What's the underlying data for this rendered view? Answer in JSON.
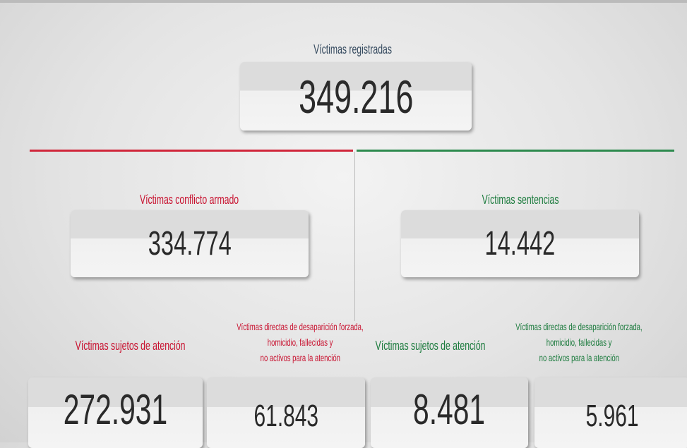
{
  "total": {
    "label": "Víctimas registradas",
    "value": "349.216"
  },
  "sections": [
    {
      "label": "Víctimas conflicto armado",
      "value": "334.774",
      "items": [
        {
          "label": [
            "Víctimas sujetos de atención"
          ],
          "value": "272.931"
        },
        {
          "label": [
            "Víctimas directas de desaparición forzada,",
            "homicidio, fallecidas y",
            "no activos para la atención"
          ],
          "value": "61.843"
        }
      ]
    },
    {
      "label": "Víctimas sentencias",
      "value": "14.442",
      "items": [
        {
          "label": [
            "Víctimas sujetos de atención"
          ],
          "value": "8.481"
        },
        {
          "label": [
            "Víctimas directas de desaparición forzada,",
            "homicidio, fallecidas y",
            "no activos para la atención"
          ],
          "value": "5.961"
        }
      ]
    }
  ]
}
